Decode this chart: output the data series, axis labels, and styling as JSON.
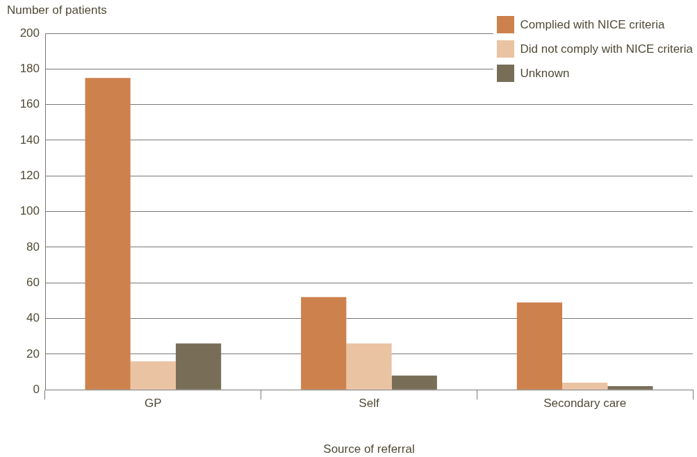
{
  "chart_data": {
    "type": "bar",
    "xlabel": "Source of referral",
    "ylabel": "Number of patients",
    "categories": [
      "GP",
      "Self",
      "Secondary care"
    ],
    "series": [
      {
        "name": "Complied with NICE criteria",
        "color": "#cd814c",
        "values": [
          175,
          52,
          49
        ]
      },
      {
        "name": "Did not comply with NICE criteria",
        "color": "#eac3a3",
        "values": [
          16,
          26,
          4
        ]
      },
      {
        "name": "Unknown",
        "color": "#786e58",
        "values": [
          26,
          8,
          2
        ]
      }
    ],
    "ylim": [
      0,
      200
    ],
    "yticks": [
      0,
      20,
      40,
      60,
      80,
      100,
      120,
      140,
      160,
      180,
      200
    ],
    "grid": "y",
    "legend": "top right"
  }
}
